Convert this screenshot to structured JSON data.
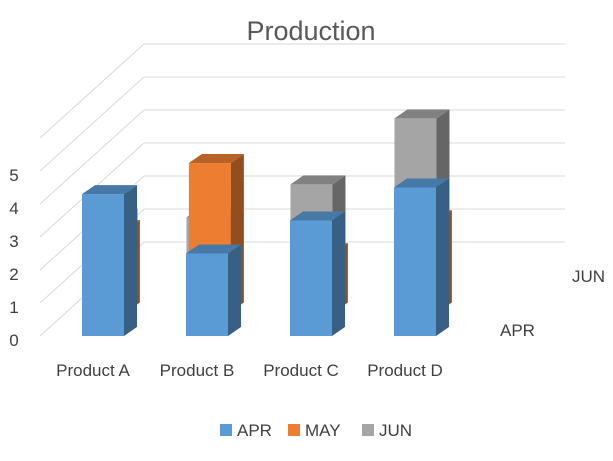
{
  "chart_data": {
    "type": "bar",
    "title": "Production",
    "categories": [
      "Product A",
      "Product B",
      "Product C",
      "Product D"
    ],
    "series": [
      {
        "name": "APR",
        "values": [
          4.3,
          2.5,
          3.5,
          4.5
        ],
        "color": "#5b9bd5"
      },
      {
        "name": "MAY",
        "values": [
          2.5,
          4.5,
          1.8,
          2.8
        ],
        "color": "#ed7d31"
      },
      {
        "name": "JUN",
        "values": [
          2.0,
          2.0,
          3.0,
          5.0
        ],
        "color": "#a5a5a5"
      }
    ],
    "depth_labels": [
      "APR",
      "JUN"
    ],
    "yticks": [
      "0",
      "1",
      "2",
      "3",
      "4",
      "5"
    ],
    "ylim": [
      0,
      5
    ],
    "grid": true,
    "legend": {
      "position": "bottom",
      "items": [
        "APR",
        "MAY",
        "JUN"
      ]
    }
  }
}
